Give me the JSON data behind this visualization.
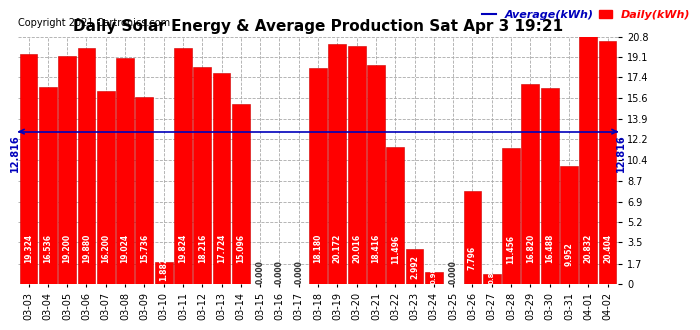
{
  "title": "Daily Solar Energy & Average Production Sat Apr 3 19:21",
  "copyright": "Copyright 2021 Cartronics.com",
  "legend_average": "Average(kWh)",
  "legend_daily": "Daily(kWh)",
  "average_value": 12.816,
  "average_label": "12.816",
  "categories": [
    "03-03",
    "03-04",
    "03-05",
    "03-06",
    "03-07",
    "03-08",
    "03-09",
    "03-10",
    "03-11",
    "03-12",
    "03-13",
    "03-14",
    "03-15",
    "03-16",
    "03-17",
    "03-18",
    "03-19",
    "03-20",
    "03-21",
    "03-22",
    "03-23",
    "03-24",
    "03-25",
    "03-26",
    "03-27",
    "03-28",
    "03-29",
    "03-30",
    "03-31",
    "04-01",
    "04-02"
  ],
  "values": [
    19.324,
    16.536,
    19.2,
    19.88,
    16.2,
    19.024,
    15.736,
    1.882,
    19.824,
    18.216,
    17.724,
    15.096,
    0.0,
    0.0,
    0.0,
    18.18,
    20.172,
    20.016,
    18.416,
    11.496,
    2.992,
    0.98,
    0.0,
    7.796,
    0.84,
    11.456,
    16.82,
    16.488,
    9.952,
    20.832,
    20.404
  ],
  "bar_color": "#ff0000",
  "bar_edge_color": "#cc0000",
  "average_line_color": "#0000bb",
  "value_text_color": "#ffffff",
  "background_color": "#ffffff",
  "grid_color": "#aaaaaa",
  "yticks": [
    0.0,
    1.7,
    3.5,
    5.2,
    6.9,
    8.7,
    10.4,
    12.2,
    13.9,
    15.6,
    17.4,
    19.1,
    20.8
  ],
  "ylim": [
    0.0,
    20.8
  ],
  "title_fontsize": 11,
  "copyright_fontsize": 7,
  "legend_fontsize": 8,
  "tick_fontsize": 7,
  "value_fontsize": 5.5
}
